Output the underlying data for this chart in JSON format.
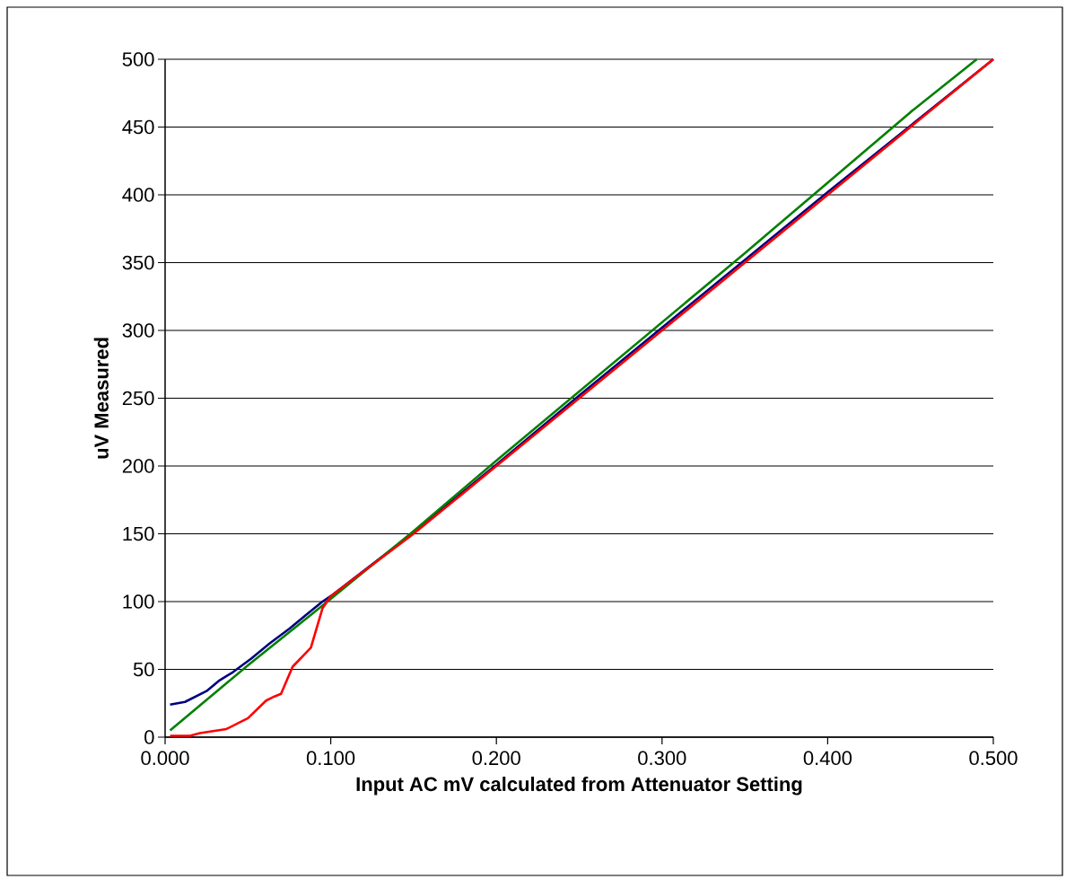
{
  "chart_data": {
    "type": "line",
    "xlabel": "Input AC mV calculated from Attenuator Setting",
    "ylabel": "uV Measured",
    "xlim": [
      0,
      0.5
    ],
    "ylim": [
      0,
      500
    ],
    "xticks": [
      {
        "value": 0,
        "label": "0.000"
      },
      {
        "value": 0.1,
        "label": "0.100"
      },
      {
        "value": 0.2,
        "label": "0.200"
      },
      {
        "value": 0.3,
        "label": "0.300"
      },
      {
        "value": 0.4,
        "label": "0.400"
      },
      {
        "value": 0.5,
        "label": "0.500"
      }
    ],
    "yticks": [
      0,
      50,
      100,
      150,
      200,
      250,
      300,
      350,
      400,
      450,
      500
    ],
    "grid": "y",
    "marker": "none",
    "line_style": "solid",
    "series": [
      {
        "color": "#000080",
        "x": [
          0.003,
          0.012,
          0.025,
          0.033,
          0.041,
          0.052,
          0.063,
          0.075,
          0.085,
          0.095,
          0.1,
          0.15,
          0.2,
          0.25,
          0.3,
          0.35,
          0.4,
          0.45,
          0.5
        ],
        "values": [
          24,
          26,
          34,
          42,
          48,
          58,
          69,
          80,
          90,
          100,
          104,
          151,
          201,
          252,
          302,
          352,
          402,
          451,
          500
        ]
      },
      {
        "color": "#008000",
        "x": [
          0.003,
          0.05,
          0.098,
          0.15,
          0.2,
          0.25,
          0.3,
          0.35,
          0.4,
          0.45,
          0.49
        ],
        "values": [
          5,
          53,
          100,
          152,
          204,
          255,
          306,
          357,
          409,
          461,
          500
        ]
      },
      {
        "color": "#ff0000",
        "x": [
          0.003,
          0.015,
          0.021,
          0.037,
          0.05,
          0.061,
          0.066,
          0.07,
          0.077,
          0.088,
          0.095,
          0.1,
          0.15,
          0.2,
          0.25,
          0.3,
          0.35,
          0.4,
          0.45,
          0.5
        ],
        "values": [
          1,
          1,
          3,
          6,
          14,
          27,
          30,
          32,
          52,
          66,
          95,
          104,
          150,
          200,
          250,
          300,
          350,
          400,
          450,
          500
        ]
      }
    ]
  }
}
